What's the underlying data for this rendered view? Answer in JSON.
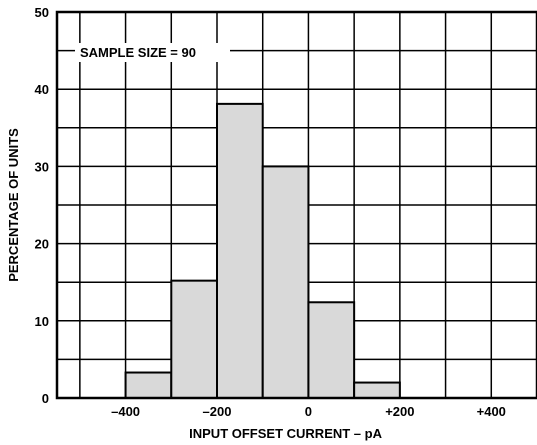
{
  "chart_data": {
    "type": "bar",
    "title": "",
    "xlabel": "INPUT OFFSET CURRENT – pA",
    "ylabel": "PERCENTAGE OF UNITS",
    "annotation": "SAMPLE SIZE = 90",
    "x_ticks": [
      {
        "value": -400,
        "label": "–400"
      },
      {
        "value": -200,
        "label": "–200"
      },
      {
        "value": 0,
        "label": "0"
      },
      {
        "value": 200,
        "label": "+200"
      },
      {
        "value": 400,
        "label": "+400"
      }
    ],
    "y_ticks": [
      {
        "value": 0,
        "label": "0"
      },
      {
        "value": 10,
        "label": "10"
      },
      {
        "value": 20,
        "label": "20"
      },
      {
        "value": 30,
        "label": "30"
      },
      {
        "value": 40,
        "label": "40"
      },
      {
        "value": 50,
        "label": "50"
      }
    ],
    "xlim": [
      -550,
      500
    ],
    "ylim": [
      0,
      50
    ],
    "grid": true,
    "bin_edges": [
      -400,
      -300,
      -200,
      -100,
      0,
      100,
      200
    ],
    "bars": [
      {
        "bin": [
          -400,
          -300
        ],
        "value": 3.3
      },
      {
        "bin": [
          -300,
          -200
        ],
        "value": 15.2
      },
      {
        "bin": [
          -200,
          -100
        ],
        "value": 38.1
      },
      {
        "bin": [
          -100,
          0
        ],
        "value": 30.0
      },
      {
        "bin": [
          0,
          100
        ],
        "value": 12.4
      },
      {
        "bin": [
          100,
          200
        ],
        "value": 2.0
      }
    ],
    "colors": {
      "bar_fill": "#d9d9d9",
      "stroke": "#000000",
      "background": "#ffffff"
    }
  }
}
